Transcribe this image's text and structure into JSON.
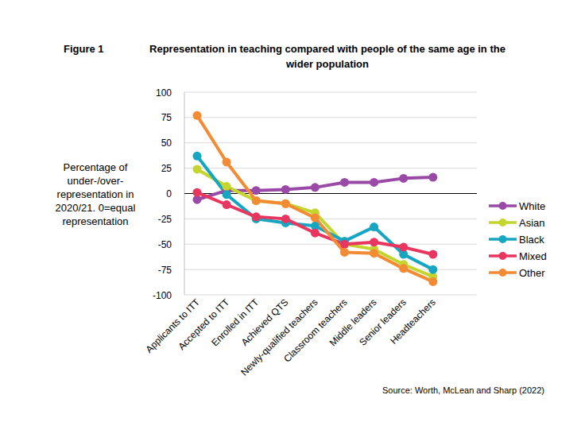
{
  "chart_data": {
    "type": "line",
    "title": [
      "Representation in teaching compared with people of the same age in the",
      "wider population"
    ],
    "annotations": [
      "Figure 1",
      "Source: Worth, McLean and Sharp (2022)"
    ],
    "ylabel": [
      "Percentage of",
      "under-/over-",
      "representation in",
      "2020/21. 0=equal",
      "representation"
    ],
    "categories": [
      "Applicants to ITT",
      "Accepted to ITT",
      "Enrolled in ITT",
      "Achieved QTS",
      "Newly-qualified teachers",
      "Classroom teachers",
      "Middle leaders",
      "Senior leaders",
      "Headteachers"
    ],
    "series": [
      {
        "name": "White",
        "color": "#9a4aa6",
        "values": [
          -6,
          3,
          3,
          4,
          6,
          11,
          11,
          15,
          16
        ]
      },
      {
        "name": "Asian",
        "color": "#c4d52e",
        "values": [
          24,
          7,
          -7,
          -10,
          -19,
          -50,
          -55,
          -70,
          -82
        ]
      },
      {
        "name": "Black",
        "color": "#17a6c1",
        "values": [
          37,
          -1,
          -25,
          -29,
          -32,
          -47,
          -33,
          -60,
          -75
        ]
      },
      {
        "name": "Mixed",
        "color": "#e8365f",
        "values": [
          1,
          -11,
          -23,
          -25,
          -39,
          -50,
          -48,
          -53,
          -60
        ]
      },
      {
        "name": "Other",
        "color": "#f38b35",
        "values": [
          77,
          31,
          -7,
          -10,
          -24,
          -58,
          -59,
          -74,
          -87
        ]
      }
    ],
    "ylim": [
      -100,
      100
    ],
    "yticks": [
      -100,
      -75,
      -50,
      -25,
      0,
      25,
      50,
      75,
      100
    ],
    "grid": true,
    "legend": "right",
    "marker": "circle"
  }
}
